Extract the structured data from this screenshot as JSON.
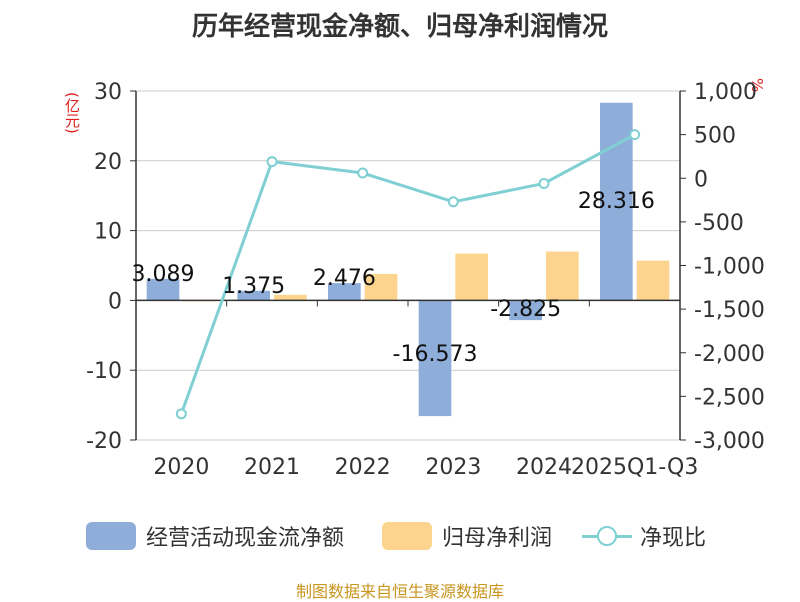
{
  "title": "历年经营现金净额、归母净利润情况",
  "unit_left": "(亿元)",
  "unit_right": "%",
  "source": "制图数据来自恒生聚源数据库",
  "colors": {
    "ocf": "#8eadd9",
    "np": "#fdd48e",
    "ratio": "#7fcfd3",
    "axis": "#333333",
    "grid": "#cccccc"
  },
  "legend": [
    {
      "label": "经营活动现金流净额",
      "kind": "bar",
      "color_key": "ocf"
    },
    {
      "label": "归母净利润",
      "kind": "bar",
      "color_key": "np"
    },
    {
      "label": "净现比",
      "kind": "line",
      "color_key": "ratio"
    }
  ],
  "chart_data": {
    "type": "bar",
    "categories": [
      "2020",
      "2021",
      "2022",
      "2023",
      "2024",
      "2025Q1-Q3"
    ],
    "series": [
      {
        "name": "经营活动现金流净额",
        "axis": "left",
        "type": "bar",
        "values": [
          3.089,
          1.375,
          2.476,
          -16.573,
          -2.825,
          28.316
        ],
        "labels": [
          "3.089",
          "1.375",
          "2.476",
          "-16.573",
          "-2.825",
          "28.316"
        ]
      },
      {
        "name": "归母净利润",
        "axis": "left",
        "type": "bar",
        "values": [
          -0.1,
          0.8,
          3.8,
          6.7,
          7.0,
          5.7
        ]
      },
      {
        "name": "净现比",
        "axis": "right",
        "type": "line",
        "values": [
          -2700,
          190,
          60,
          -270,
          -60,
          500
        ]
      }
    ],
    "y_left": {
      "min": -20,
      "max": 30,
      "ticks": [
        "30",
        "20",
        "10",
        "0",
        "-10",
        "-20"
      ]
    },
    "y_right": {
      "min": -3000,
      "max": 1000,
      "ticks": [
        "1,000",
        "500",
        "0",
        "-500",
        "-1,000",
        "-1,500",
        "-2,000",
        "-2,500",
        "-3,000"
      ]
    },
    "grid": true
  }
}
